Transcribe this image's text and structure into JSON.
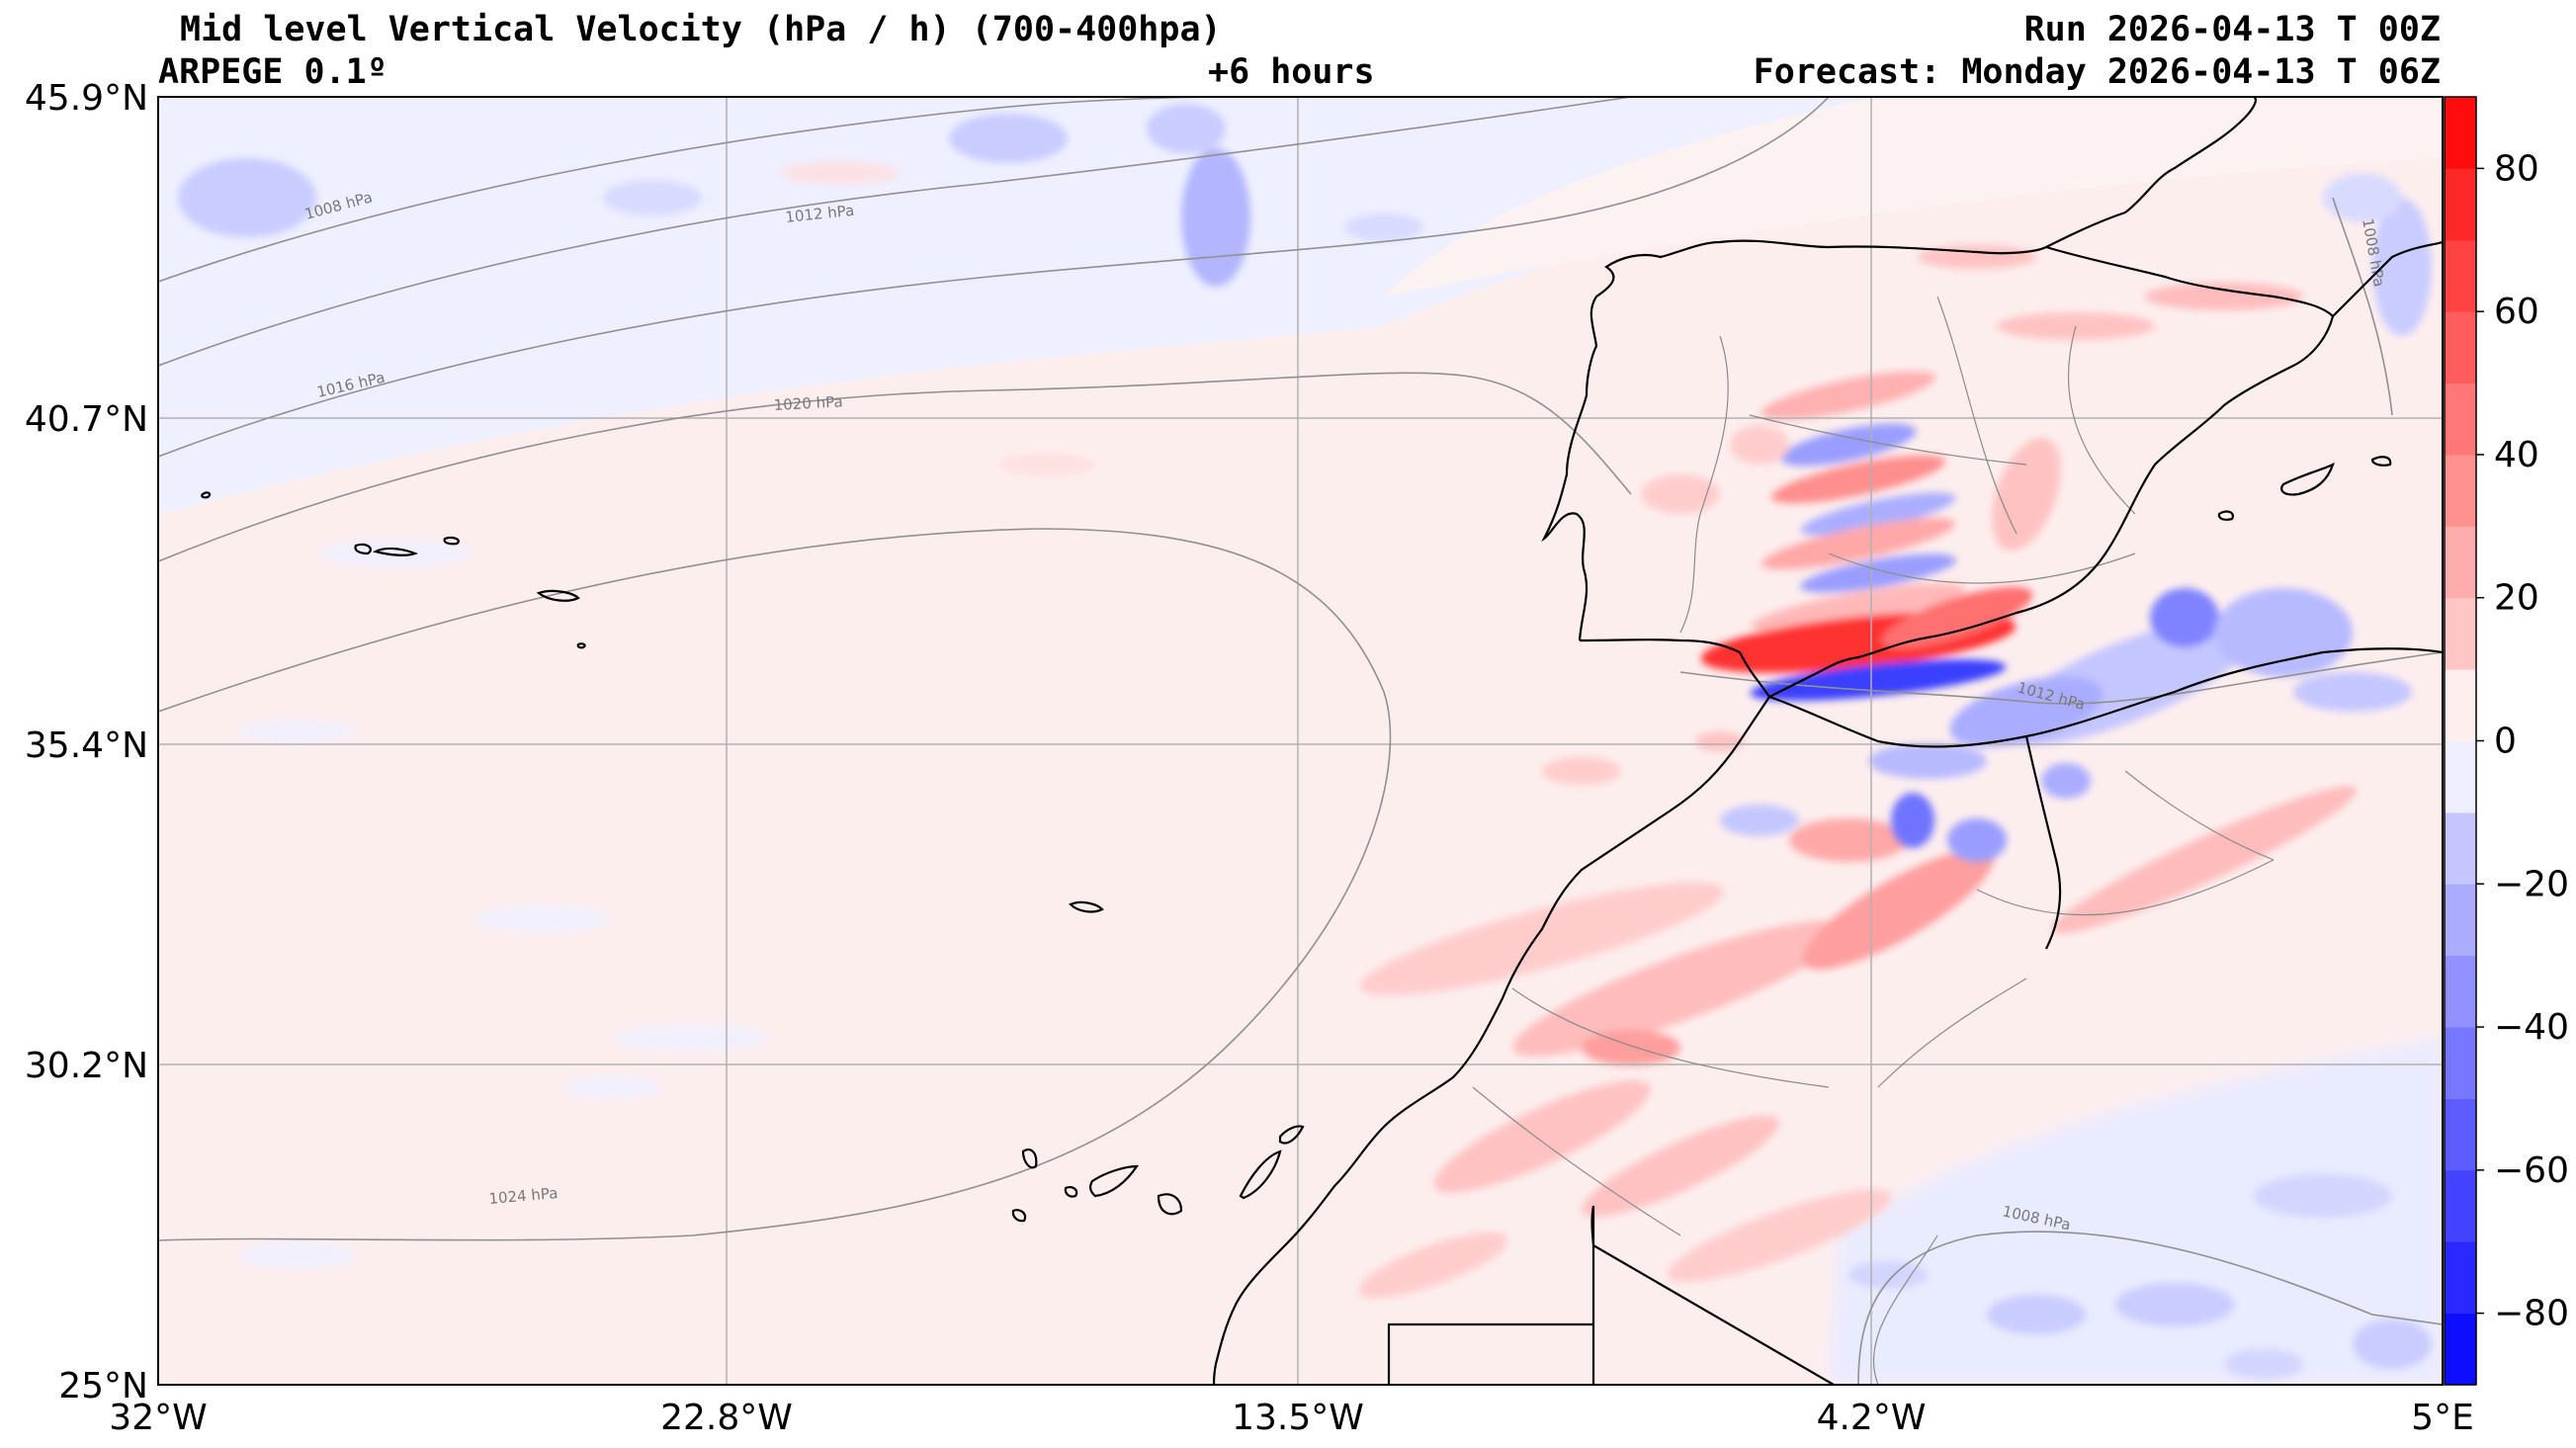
{
  "header": {
    "title": "Mid level Vertical Velocity (hPa / h)  (700-400hpa)",
    "model": "ARPEGE 0.1º",
    "lead": "+6 hours",
    "run": "Run 2026-04-13 T 00Z",
    "forecast": "Forecast: Monday 2026-04-13 T 06Z"
  },
  "map": {
    "lat_ticks": [
      "45.9°N",
      "40.7°N",
      "35.4°N",
      "30.2°N",
      "25°N"
    ],
    "lon_ticks": [
      "32°W",
      "22.8°W",
      "13.5°W",
      "4.2°W",
      "5°E"
    ],
    "isobar_labels": [
      "1008 hPa",
      "1012 hPa",
      "1016 hPa",
      "1020 hPa",
      "1024 hPa",
      "1012 hPa",
      "1008 hPa",
      "1008 hPa"
    ]
  },
  "colorbar": {
    "tick_labels": [
      "80",
      "60",
      "40",
      "20",
      "0",
      "−20",
      "−40",
      "−60",
      "−80"
    ],
    "range": [
      -90,
      90
    ],
    "colors": {
      "strong_ascent": "#0000ff",
      "weak_ascent": "#eeeeff",
      "neutral": "#ffffff",
      "weak_descent": "#ffeeee",
      "strong_descent": "#ff0000"
    }
  }
}
